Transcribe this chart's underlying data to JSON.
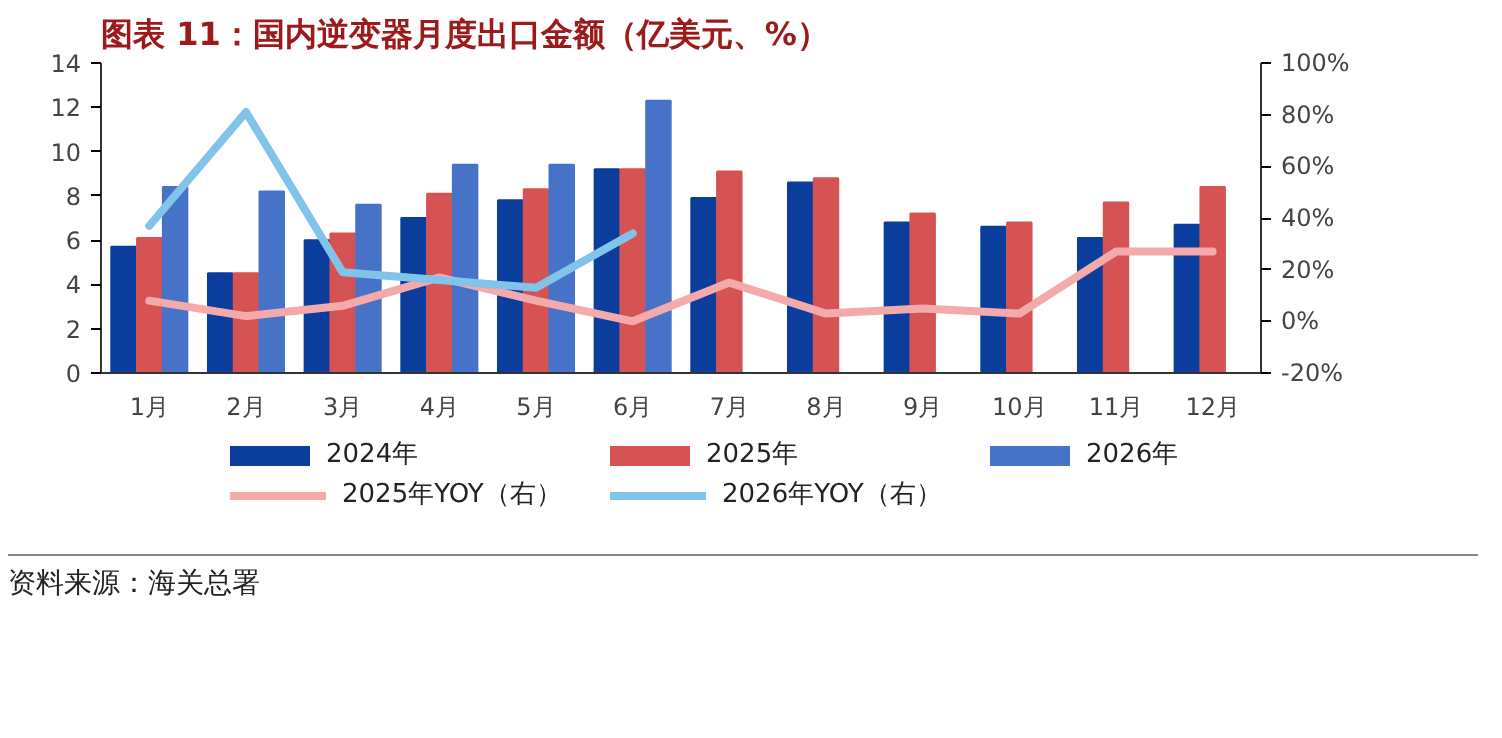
{
  "chart_data": {
    "type": "bar",
    "title": "图表 11：国内逆变器月度出口金额（亿美元、%）",
    "categories": [
      "1月",
      "2月",
      "3月",
      "4月",
      "5月",
      "6月",
      "7月",
      "8月",
      "9月",
      "10月",
      "11月",
      "12月"
    ],
    "series": [
      {
        "name": "2024年",
        "color": "#0b3d9c",
        "values": [
          5.7,
          4.5,
          6.0,
          7.0,
          7.8,
          9.2,
          7.9,
          8.6,
          6.8,
          6.6,
          6.1,
          6.7
        ]
      },
      {
        "name": "2025年",
        "color": "#d65353",
        "values": [
          6.1,
          4.5,
          6.3,
          8.1,
          8.3,
          9.2,
          9.1,
          8.8,
          7.2,
          6.8,
          7.7,
          8.4
        ]
      },
      {
        "name": "2026年",
        "color": "#4673c8",
        "values": [
          8.4,
          8.2,
          7.6,
          9.4,
          9.4,
          12.3,
          null,
          null,
          null,
          null,
          null,
          null
        ]
      },
      {
        "name": "2025年YOY（右）",
        "type": "line",
        "axis": "y2",
        "color": "#f4a9aa",
        "values": [
          8,
          2,
          6,
          17,
          8,
          0,
          15,
          3,
          5,
          3,
          27,
          27
        ]
      },
      {
        "name": "2026年YOY（右）",
        "type": "line",
        "axis": "y2",
        "color": "#82c3ea",
        "values": [
          37,
          81,
          19,
          16,
          13,
          34,
          null,
          null,
          null,
          null,
          null,
          null
        ]
      }
    ],
    "ylim": [
      0,
      14
    ],
    "yticks": [
      0,
      2,
      4,
      6,
      8,
      10,
      12,
      14
    ],
    "y2lim": [
      -20,
      100
    ],
    "y2ticks": [
      {
        "value": -20,
        "label": "-20%"
      },
      {
        "value": 0,
        "label": "0%"
      },
      {
        "value": 20,
        "label": "20%"
      },
      {
        "value": 40,
        "label": "40%"
      },
      {
        "value": 60,
        "label": "60%"
      },
      {
        "value": 80,
        "label": "80%"
      },
      {
        "value": 100,
        "label": "100%"
      }
    ],
    "grid": false,
    "legend": "bottom",
    "annotations": [
      "资料来源：海关总署"
    ]
  }
}
